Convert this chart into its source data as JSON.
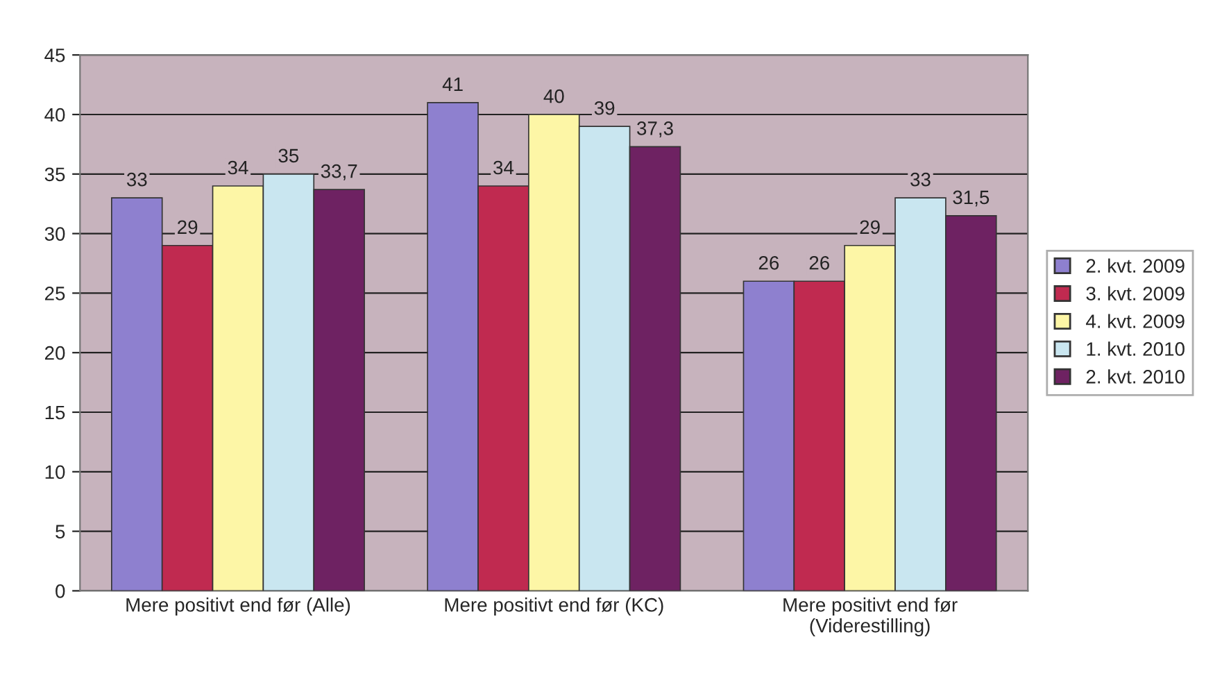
{
  "chart_data": {
    "type": "bar",
    "categories": [
      "Mere positivt end før (Alle)",
      "Mere positivt end før (KC)",
      "Mere positivt end før\n(Viderestilling)"
    ],
    "series": [
      {
        "name": "2. kvt. 2009",
        "color": "#8e80cf",
        "values": [
          33,
          41,
          26
        ],
        "value_labels": [
          "33",
          "41",
          "26"
        ]
      },
      {
        "name": "3. kvt. 2009",
        "color": "#c02a50",
        "values": [
          29,
          34,
          26
        ],
        "value_labels": [
          "29",
          "34",
          "26"
        ]
      },
      {
        "name": "4. kvt. 2009",
        "color": "#fdf6a6",
        "values": [
          34,
          40,
          29
        ],
        "value_labels": [
          "34",
          "40",
          "29"
        ]
      },
      {
        "name": "1. kvt. 2010",
        "color": "#c9e6f0",
        "values": [
          35,
          39,
          33
        ],
        "value_labels": [
          "35",
          "39",
          "33"
        ]
      },
      {
        "name": "2. kvt. 2010",
        "color": "#6e2262",
        "values": [
          33.7,
          37.3,
          31.5
        ],
        "value_labels": [
          "33,7",
          "37,3",
          "31,5"
        ]
      }
    ],
    "ylim": [
      0,
      45
    ],
    "yticks": [
      0,
      5,
      10,
      15,
      20,
      25,
      30,
      35,
      40,
      45
    ],
    "grid": "y",
    "legend": "right"
  }
}
